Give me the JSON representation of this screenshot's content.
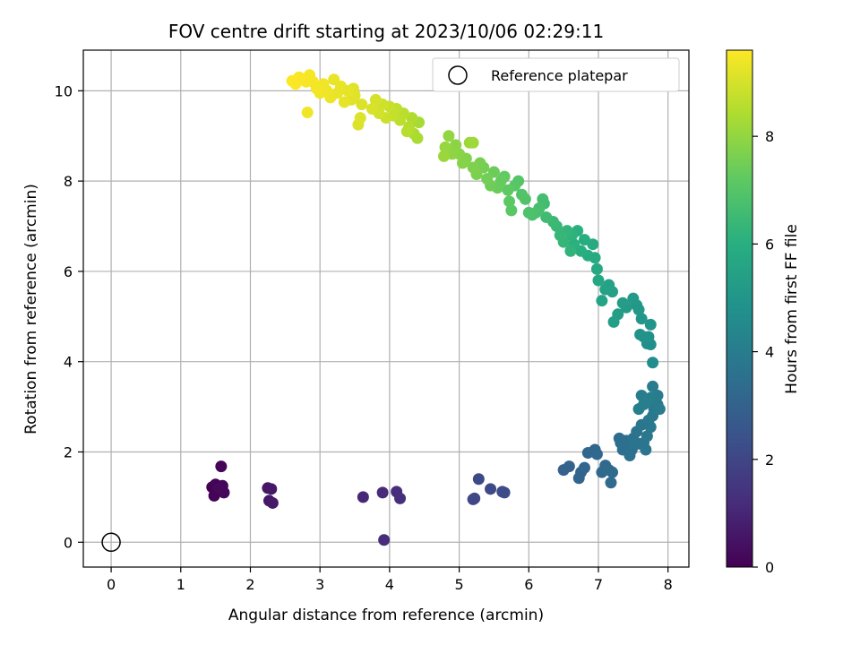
{
  "chart_data": {
    "type": "scatter",
    "title": "FOV centre drift starting at 2023/10/06 02:29:11",
    "xlabel": "Angular distance from reference (arcmin)",
    "ylabel": "Rotation from reference (arcmin)",
    "xlim": [
      -0.4,
      8.3
    ],
    "ylim": [
      -0.55,
      10.9
    ],
    "xticks": [
      0,
      1,
      2,
      3,
      4,
      5,
      6,
      7,
      8
    ],
    "yticks": [
      0,
      2,
      4,
      6,
      8,
      10
    ],
    "grid": true,
    "legend": {
      "position": "top-right",
      "label": "Reference platepar",
      "marker": "open-circle"
    },
    "reference_point": {
      "x": 0,
      "y": 0
    },
    "colorbar": {
      "label": "Hours from first FF file",
      "colormap": "viridis",
      "range": [
        0,
        9.6
      ],
      "ticks": [
        0,
        2,
        4,
        6,
        8
      ]
    },
    "points": [
      [
        1.45,
        1.22,
        0.0
      ],
      [
        1.48,
        1.03,
        0.05
      ],
      [
        1.5,
        1.28,
        0.08
      ],
      [
        1.52,
        1.18,
        0.1
      ],
      [
        1.58,
        1.68,
        0.12
      ],
      [
        1.6,
        1.25,
        0.15
      ],
      [
        1.62,
        1.1,
        0.18
      ],
      [
        1.55,
        1.2,
        0.2
      ],
      [
        2.25,
        1.2,
        0.55
      ],
      [
        2.27,
        0.92,
        0.6
      ],
      [
        2.3,
        1.18,
        0.62
      ],
      [
        2.32,
        0.87,
        0.65
      ],
      [
        3.62,
        1.0,
        1.05
      ],
      [
        3.9,
        1.1,
        1.15
      ],
      [
        3.92,
        0.05,
        1.2
      ],
      [
        4.1,
        1.12,
        1.25
      ],
      [
        4.15,
        0.97,
        1.3
      ],
      [
        5.2,
        0.95,
        2.0
      ],
      [
        5.22,
        0.97,
        2.05
      ],
      [
        5.28,
        1.4,
        2.1
      ],
      [
        5.45,
        1.18,
        2.15
      ],
      [
        5.62,
        1.12,
        2.2
      ],
      [
        5.65,
        1.1,
        2.25
      ],
      [
        6.5,
        1.6,
        3.0
      ],
      [
        6.58,
        1.68,
        3.05
      ],
      [
        6.72,
        1.42,
        3.1
      ],
      [
        6.75,
        1.55,
        3.12
      ],
      [
        6.8,
        1.65,
        3.15
      ],
      [
        6.85,
        1.98,
        3.18
      ],
      [
        6.95,
        2.05,
        3.2
      ],
      [
        6.98,
        1.95,
        3.22
      ],
      [
        7.05,
        1.55,
        3.25
      ],
      [
        7.1,
        1.7,
        3.28
      ],
      [
        7.15,
        1.6,
        3.3
      ],
      [
        7.18,
        1.32,
        3.32
      ],
      [
        7.2,
        1.55,
        3.35
      ],
      [
        7.3,
        2.3,
        3.4
      ],
      [
        7.32,
        2.2,
        3.42
      ],
      [
        7.35,
        2.05,
        3.45
      ],
      [
        7.38,
        2.15,
        3.48
      ],
      [
        7.4,
        2.25,
        3.5
      ],
      [
        7.42,
        2.1,
        3.52
      ],
      [
        7.45,
        1.92,
        3.55
      ],
      [
        7.48,
        2.05,
        3.58
      ],
      [
        7.5,
        2.3,
        3.6
      ],
      [
        7.52,
        2.2,
        3.62
      ],
      [
        7.55,
        2.45,
        3.65
      ],
      [
        7.58,
        2.18,
        3.68
      ],
      [
        7.62,
        2.6,
        3.7
      ],
      [
        7.65,
        2.2,
        3.72
      ],
      [
        7.68,
        2.05,
        3.75
      ],
      [
        7.7,
        2.35,
        3.78
      ],
      [
        7.72,
        2.7,
        3.8
      ],
      [
        7.75,
        2.55,
        3.82
      ],
      [
        7.78,
        2.8,
        3.85
      ],
      [
        7.8,
        2.95,
        3.88
      ],
      [
        7.82,
        3.1,
        3.9
      ],
      [
        7.85,
        3.05,
        3.92
      ],
      [
        7.88,
        2.95,
        3.95
      ],
      [
        7.78,
        3.45,
        3.98
      ],
      [
        7.85,
        3.25,
        4.0
      ],
      [
        7.62,
        3.25,
        4.02
      ],
      [
        7.65,
        3.05,
        4.05
      ],
      [
        7.7,
        3.15,
        4.08
      ],
      [
        7.58,
        2.95,
        4.1
      ],
      [
        7.75,
        3.2,
        4.12
      ],
      [
        7.78,
        3.98,
        4.6
      ],
      [
        7.7,
        4.4,
        4.7
      ],
      [
        7.75,
        4.38,
        4.75
      ],
      [
        7.72,
        4.55,
        4.8
      ],
      [
        7.6,
        4.6,
        4.85
      ],
      [
        7.65,
        4.55,
        4.9
      ],
      [
        7.75,
        4.82,
        4.95
      ],
      [
        7.62,
        4.95,
        5.0
      ],
      [
        7.58,
        5.15,
        5.05
      ],
      [
        7.55,
        5.25,
        5.1
      ],
      [
        7.5,
        5.4,
        5.15
      ],
      [
        7.4,
        5.2,
        5.2
      ],
      [
        7.35,
        5.3,
        5.25
      ],
      [
        7.28,
        5.05,
        5.3
      ],
      [
        7.22,
        4.88,
        5.35
      ],
      [
        7.2,
        5.55,
        5.4
      ],
      [
        7.15,
        5.7,
        5.45
      ],
      [
        7.1,
        5.6,
        5.5
      ],
      [
        7.05,
        5.35,
        5.55
      ],
      [
        7.0,
        5.8,
        5.7
      ],
      [
        6.98,
        6.05,
        5.75
      ],
      [
        6.95,
        6.3,
        5.8
      ],
      [
        6.92,
        6.6,
        5.85
      ],
      [
        6.85,
        6.35,
        5.9
      ],
      [
        6.8,
        6.7,
        5.95
      ],
      [
        6.75,
        6.45,
        6.0
      ],
      [
        6.7,
        6.9,
        6.05
      ],
      [
        6.65,
        6.6,
        6.1
      ],
      [
        6.62,
        6.8,
        6.15
      ],
      [
        6.6,
        6.45,
        6.2
      ],
      [
        6.55,
        6.9,
        6.25
      ],
      [
        6.5,
        6.65,
        6.3
      ],
      [
        6.45,
        6.8,
        6.35
      ],
      [
        6.4,
        7.0,
        6.4
      ],
      [
        6.35,
        7.1,
        6.45
      ],
      [
        6.25,
        7.2,
        6.55
      ],
      [
        6.22,
        7.5,
        6.6
      ],
      [
        6.2,
        7.6,
        6.65
      ],
      [
        6.15,
        7.4,
        6.7
      ],
      [
        6.1,
        7.3,
        6.75
      ],
      [
        6.05,
        7.25,
        6.8
      ],
      [
        6.0,
        7.3,
        6.85
      ],
      [
        5.95,
        7.6,
        6.9
      ],
      [
        5.9,
        7.7,
        6.95
      ],
      [
        5.85,
        8.0,
        7.0
      ],
      [
        5.8,
        7.9,
        7.05
      ],
      [
        5.75,
        7.35,
        7.1
      ],
      [
        5.72,
        7.55,
        7.15
      ],
      [
        5.7,
        7.8,
        7.2
      ],
      [
        5.65,
        8.1,
        7.25
      ],
      [
        5.6,
        8.0,
        7.3
      ],
      [
        5.55,
        7.85,
        7.35
      ],
      [
        5.5,
        8.2,
        7.4
      ],
      [
        5.45,
        7.9,
        7.45
      ],
      [
        5.4,
        8.05,
        7.5
      ],
      [
        5.35,
        8.3,
        7.55
      ],
      [
        5.3,
        8.4,
        7.6
      ],
      [
        5.25,
        8.15,
        7.65
      ],
      [
        5.2,
        8.3,
        7.7
      ],
      [
        5.1,
        8.5,
        7.75
      ],
      [
        5.05,
        8.4,
        7.8
      ],
      [
        5.0,
        8.6,
        7.85
      ],
      [
        4.95,
        8.8,
        7.9
      ],
      [
        4.9,
        8.6,
        7.95
      ],
      [
        4.85,
        9.0,
        8.0
      ],
      [
        4.8,
        8.75,
        8.05
      ],
      [
        4.78,
        8.55,
        8.1
      ],
      [
        5.15,
        8.85,
        8.15
      ],
      [
        5.2,
        8.85,
        8.18
      ],
      [
        4.42,
        9.3,
        8.3
      ],
      [
        4.4,
        8.95,
        8.35
      ],
      [
        4.35,
        9.05,
        8.4
      ],
      [
        4.32,
        9.4,
        8.45
      ],
      [
        4.28,
        9.2,
        8.5
      ],
      [
        4.25,
        9.1,
        8.55
      ],
      [
        4.2,
        9.5,
        8.6
      ],
      [
        4.15,
        9.35,
        8.65
      ],
      [
        4.1,
        9.6,
        8.7
      ],
      [
        4.05,
        9.45,
        8.75
      ],
      [
        4.0,
        9.65,
        8.8
      ],
      [
        3.95,
        9.4,
        8.85
      ],
      [
        3.9,
        9.7,
        8.9
      ],
      [
        3.85,
        9.5,
        8.95
      ],
      [
        3.8,
        9.8,
        9.0
      ],
      [
        3.75,
        9.6,
        9.05
      ],
      [
        3.55,
        9.25,
        9.1
      ],
      [
        3.58,
        9.4,
        9.12
      ],
      [
        3.5,
        9.9,
        9.15
      ],
      [
        3.48,
        10.05,
        9.18
      ],
      [
        3.45,
        9.8,
        9.2
      ],
      [
        3.4,
        10.0,
        9.22
      ],
      [
        3.35,
        9.75,
        9.25
      ],
      [
        3.3,
        10.1,
        9.28
      ],
      [
        3.25,
        9.95,
        9.3
      ],
      [
        3.2,
        10.25,
        9.32
      ],
      [
        3.15,
        9.85,
        9.35
      ],
      [
        3.1,
        10.0,
        9.38
      ],
      [
        3.05,
        10.15,
        9.4
      ],
      [
        3.0,
        9.95,
        9.42
      ],
      [
        2.95,
        10.05,
        9.44
      ],
      [
        2.9,
        10.2,
        9.46
      ],
      [
        2.85,
        10.35,
        9.48
      ],
      [
        2.8,
        10.2,
        9.5
      ],
      [
        2.75,
        10.25,
        9.52
      ],
      [
        2.7,
        10.3,
        9.54
      ],
      [
        2.65,
        10.15,
        9.56
      ],
      [
        2.6,
        10.22,
        9.58
      ],
      [
        2.82,
        9.52,
        9.4
      ],
      [
        3.6,
        9.7,
        9.1
      ]
    ]
  }
}
